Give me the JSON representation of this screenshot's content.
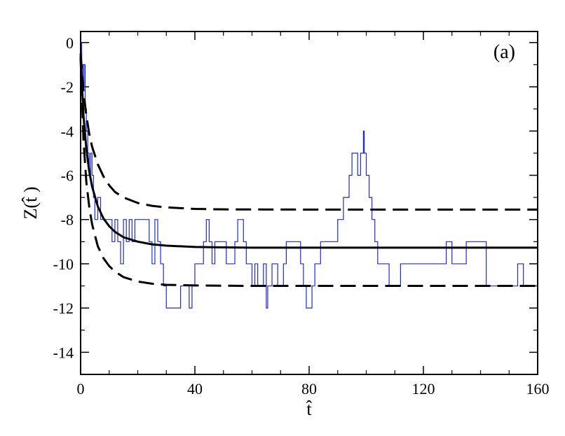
{
  "chart_data": {
    "type": "line",
    "panel_label": "(a)",
    "xlabel": "t̂",
    "ylabel": "Z(t̂ )",
    "xlim": [
      0,
      160
    ],
    "ylim": [
      -15,
      0.5
    ],
    "xticks": [
      0,
      40,
      80,
      120,
      160
    ],
    "yticks": [
      0,
      -2,
      -4,
      -6,
      -8,
      -10,
      -12,
      -14
    ],
    "xtick_labels": [
      "0",
      "40",
      "80",
      "120",
      "160"
    ],
    "ytick_labels": [
      "0",
      "-2",
      "-4",
      "-6",
      "-8",
      "-10",
      "-12",
      "-14"
    ],
    "x_minor_step": 10,
    "y_minor_step": 1,
    "grid": false,
    "series": [
      {
        "kind": "step",
        "color": "#1f2bd1",
        "points": [
          [
            0,
            0
          ],
          [
            0.4,
            -1
          ],
          [
            0.8,
            -2
          ],
          [
            1.2,
            -1
          ],
          [
            1.6,
            -3
          ],
          [
            2,
            -4
          ],
          [
            2.5,
            -5
          ],
          [
            3,
            -6
          ],
          [
            3.5,
            -5
          ],
          [
            4,
            -6
          ],
          [
            4.5,
            -7
          ],
          [
            5,
            -8
          ],
          [
            6,
            -7
          ],
          [
            7,
            -8
          ],
          [
            10,
            -8
          ],
          [
            11,
            -9
          ],
          [
            12,
            -8
          ],
          [
            13,
            -9
          ],
          [
            14,
            -10
          ],
          [
            15,
            -8
          ],
          [
            16,
            -9
          ],
          [
            17,
            -8
          ],
          [
            18,
            -9
          ],
          [
            19,
            -8
          ],
          [
            24,
            -9
          ],
          [
            25,
            -10
          ],
          [
            26,
            -8
          ],
          [
            27,
            -9
          ],
          [
            28,
            -10
          ],
          [
            29,
            -11
          ],
          [
            30,
            -12
          ],
          [
            35,
            -11
          ],
          [
            38,
            -12
          ],
          [
            39,
            -11
          ],
          [
            40,
            -10
          ],
          [
            43,
            -9
          ],
          [
            44,
            -8
          ],
          [
            45,
            -9
          ],
          [
            46,
            -10
          ],
          [
            47,
            -9
          ],
          [
            51,
            -10
          ],
          [
            54,
            -9
          ],
          [
            55,
            -8
          ],
          [
            57,
            -9
          ],
          [
            58,
            -10
          ],
          [
            60,
            -11
          ],
          [
            61,
            -10
          ],
          [
            62,
            -11
          ],
          [
            64,
            -10
          ],
          [
            65,
            -12
          ],
          [
            65.5,
            -11
          ],
          [
            67,
            -10
          ],
          [
            69,
            -11
          ],
          [
            71,
            -10
          ],
          [
            72,
            -9
          ],
          [
            77,
            -10
          ],
          [
            78,
            -11
          ],
          [
            79,
            -12
          ],
          [
            81,
            -11
          ],
          [
            82,
            -10
          ],
          [
            84,
            -9
          ],
          [
            90,
            -8
          ],
          [
            92,
            -7
          ],
          [
            94,
            -6
          ],
          [
            95,
            -5
          ],
          [
            97,
            -6
          ],
          [
            98,
            -5
          ],
          [
            99,
            -4
          ],
          [
            99.3,
            -5
          ],
          [
            100,
            -6
          ],
          [
            101,
            -7
          ],
          [
            102,
            -8
          ],
          [
            103,
            -9
          ],
          [
            104,
            -10
          ],
          [
            108,
            -11
          ],
          [
            112,
            -10
          ],
          [
            128,
            -9
          ],
          [
            130,
            -10
          ],
          [
            135,
            -9
          ],
          [
            142,
            -11
          ],
          [
            153,
            -10
          ],
          [
            155,
            -11
          ],
          [
            156,
            -11
          ]
        ]
      },
      {
        "kind": "smooth",
        "color": "#000000",
        "dashed": false,
        "points": [
          [
            0,
            -0.6
          ],
          [
            1,
            -3.3
          ],
          [
            2,
            -4.8
          ],
          [
            3,
            -5.8
          ],
          [
            4,
            -6.5
          ],
          [
            6,
            -7.4
          ],
          [
            8,
            -7.95
          ],
          [
            10,
            -8.3
          ],
          [
            12,
            -8.55
          ],
          [
            15,
            -8.8
          ],
          [
            20,
            -9.0
          ],
          [
            25,
            -9.12
          ],
          [
            30,
            -9.18
          ],
          [
            40,
            -9.24
          ],
          [
            50,
            -9.26
          ],
          [
            60,
            -9.27
          ],
          [
            80,
            -9.27
          ],
          [
            120,
            -9.27
          ],
          [
            160,
            -9.27
          ]
        ]
      },
      {
        "kind": "smooth",
        "color": "#000000",
        "dashed": true,
        "points": [
          [
            0,
            -0.5
          ],
          [
            1,
            -2.2
          ],
          [
            2,
            -3.3
          ],
          [
            3,
            -4.1
          ],
          [
            4,
            -4.7
          ],
          [
            6,
            -5.5
          ],
          [
            8,
            -6.05
          ],
          [
            10,
            -6.45
          ],
          [
            12,
            -6.75
          ],
          [
            15,
            -7.0
          ],
          [
            20,
            -7.25
          ],
          [
            25,
            -7.38
          ],
          [
            30,
            -7.45
          ],
          [
            40,
            -7.52
          ],
          [
            50,
            -7.54
          ],
          [
            80,
            -7.55
          ],
          [
            160,
            -7.55
          ]
        ]
      },
      {
        "kind": "smooth",
        "color": "#000000",
        "dashed": true,
        "points": [
          [
            0,
            -0.7
          ],
          [
            1,
            -4.4
          ],
          [
            2,
            -6.3
          ],
          [
            3,
            -7.4
          ],
          [
            4,
            -8.2
          ],
          [
            6,
            -9.2
          ],
          [
            8,
            -9.75
          ],
          [
            10,
            -10.1
          ],
          [
            12,
            -10.35
          ],
          [
            15,
            -10.6
          ],
          [
            20,
            -10.8
          ],
          [
            25,
            -10.9
          ],
          [
            30,
            -10.95
          ],
          [
            40,
            -10.98
          ],
          [
            60,
            -11.0
          ],
          [
            160,
            -11.0
          ]
        ]
      }
    ]
  }
}
